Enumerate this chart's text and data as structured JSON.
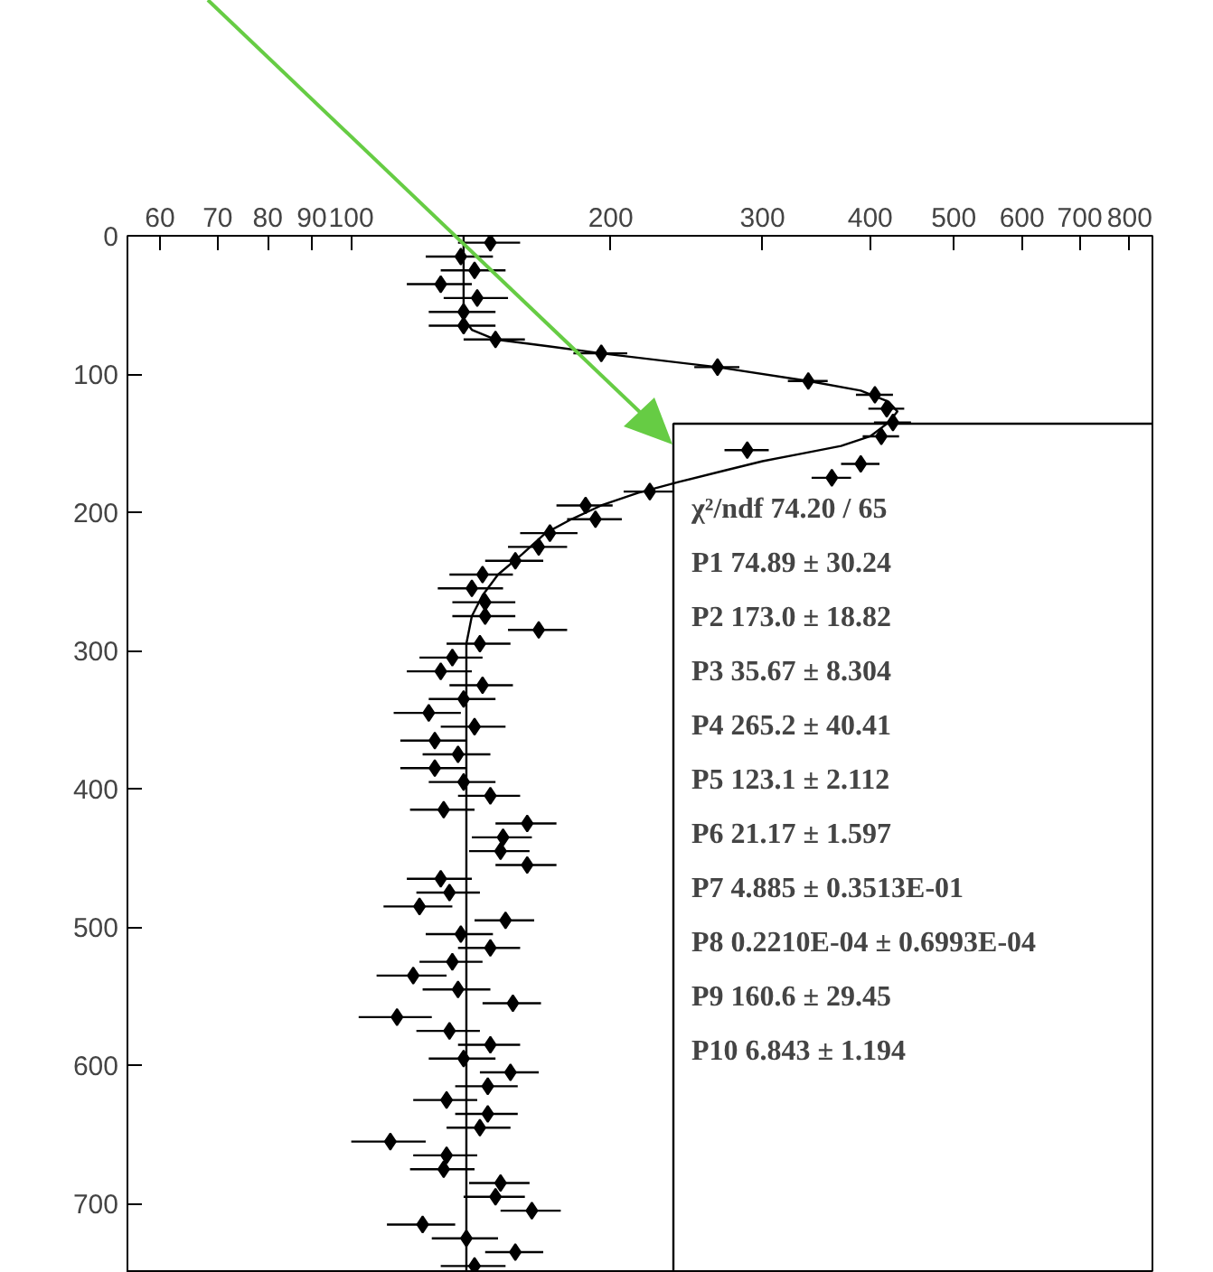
{
  "chart_data": {
    "type": "scatter",
    "log": "x",
    "xlim": [
      55,
      850
    ],
    "ylim": [
      750,
      0
    ],
    "xticks": [
      60,
      70,
      80,
      90,
      100,
      200,
      300,
      400,
      500,
      600,
      700,
      800
    ],
    "yticks": [
      0,
      100,
      200,
      300,
      400,
      500,
      600,
      700
    ],
    "grid": false,
    "annotations": [
      "χ²/ndf   74.20  /  65",
      "P1   74.89 ±  30.24",
      "P2   173.0 ±  18.82",
      "P3   35.67 ±  8.304",
      "P4   265.2 ±  40.41",
      "P5   123.1 ±  2.112",
      "P6   21.17 ±  1.597",
      "P7   4.885 ±  0.3513E-01",
      "P8   0.2210E-04 ±  0.6993E-04",
      "P9   160.6 ±  29.45",
      "P10   6.843 ±  1.194"
    ],
    "series": [
      {
        "marker": "diamond",
        "color": "#000000",
        "x": [
          145,
          134,
          139,
          127,
          140,
          135,
          135,
          147,
          195,
          266,
          339,
          405,
          418,
          425,
          412,
          288,
          390,
          361,
          222,
          187,
          192,
          170,
          165,
          155,
          142,
          138,
          143,
          143,
          165,
          141,
          131,
          127,
          142,
          135,
          123,
          139,
          125,
          133,
          125,
          135,
          145,
          128,
          160,
          150,
          149,
          160,
          127,
          130,
          120,
          151,
          134,
          145,
          131,
          118,
          133,
          154,
          113,
          130,
          145,
          135,
          153,
          144,
          129,
          144,
          141,
          111,
          129,
          128,
          149,
          147,
          162,
          121,
          136,
          155,
          139
        ],
        "values": [
          5,
          15,
          25,
          35,
          45,
          55,
          65,
          75,
          85,
          95,
          105,
          115,
          125,
          135,
          145,
          155,
          165,
          175,
          185,
          195,
          205,
          215,
          225,
          235,
          245,
          255,
          265,
          275,
          285,
          295,
          305,
          315,
          325,
          335,
          345,
          355,
          365,
          375,
          385,
          395,
          405,
          415,
          425,
          435,
          445,
          455,
          465,
          475,
          485,
          495,
          505,
          515,
          525,
          535,
          545,
          555,
          565,
          575,
          585,
          595,
          605,
          615,
          625,
          635,
          645,
          655,
          665,
          675,
          685,
          695,
          705,
          715,
          725,
          735,
          745
        ],
        "xerrors": [
          12,
          12,
          12,
          11,
          12,
          12,
          12,
          12,
          14,
          16,
          18,
          20,
          20,
          21,
          20,
          17,
          20,
          19,
          15,
          14,
          14,
          13,
          13,
          12,
          12,
          12,
          12,
          12,
          13,
          12,
          11,
          11,
          12,
          12,
          11,
          12,
          11,
          12,
          11,
          12,
          12,
          11,
          13,
          12,
          12,
          13,
          11,
          11,
          11,
          12,
          12,
          12,
          11,
          11,
          12,
          12,
          11,
          11,
          12,
          12,
          12,
          12,
          11,
          12,
          12,
          11,
          11,
          11,
          12,
          12,
          13,
          11,
          12,
          12,
          12
        ]
      },
      {
        "type": "line",
        "color": "#000000",
        "x": [
          135,
          135,
          138,
          147,
          170,
          195,
          266,
          339,
          390,
          420,
          430,
          420,
          400,
          370,
          330,
          300,
          270,
          240,
          215,
          195,
          180,
          168,
          158,
          148,
          142,
          138,
          136,
          136
        ],
        "values": [
          0,
          60,
          68,
          75,
          80,
          85,
          95,
          105,
          112,
          120,
          127,
          135,
          145,
          152,
          158,
          163,
          170,
          178,
          186,
          195,
          205,
          215,
          230,
          245,
          260,
          275,
          295,
          750
        ]
      }
    ]
  }
}
